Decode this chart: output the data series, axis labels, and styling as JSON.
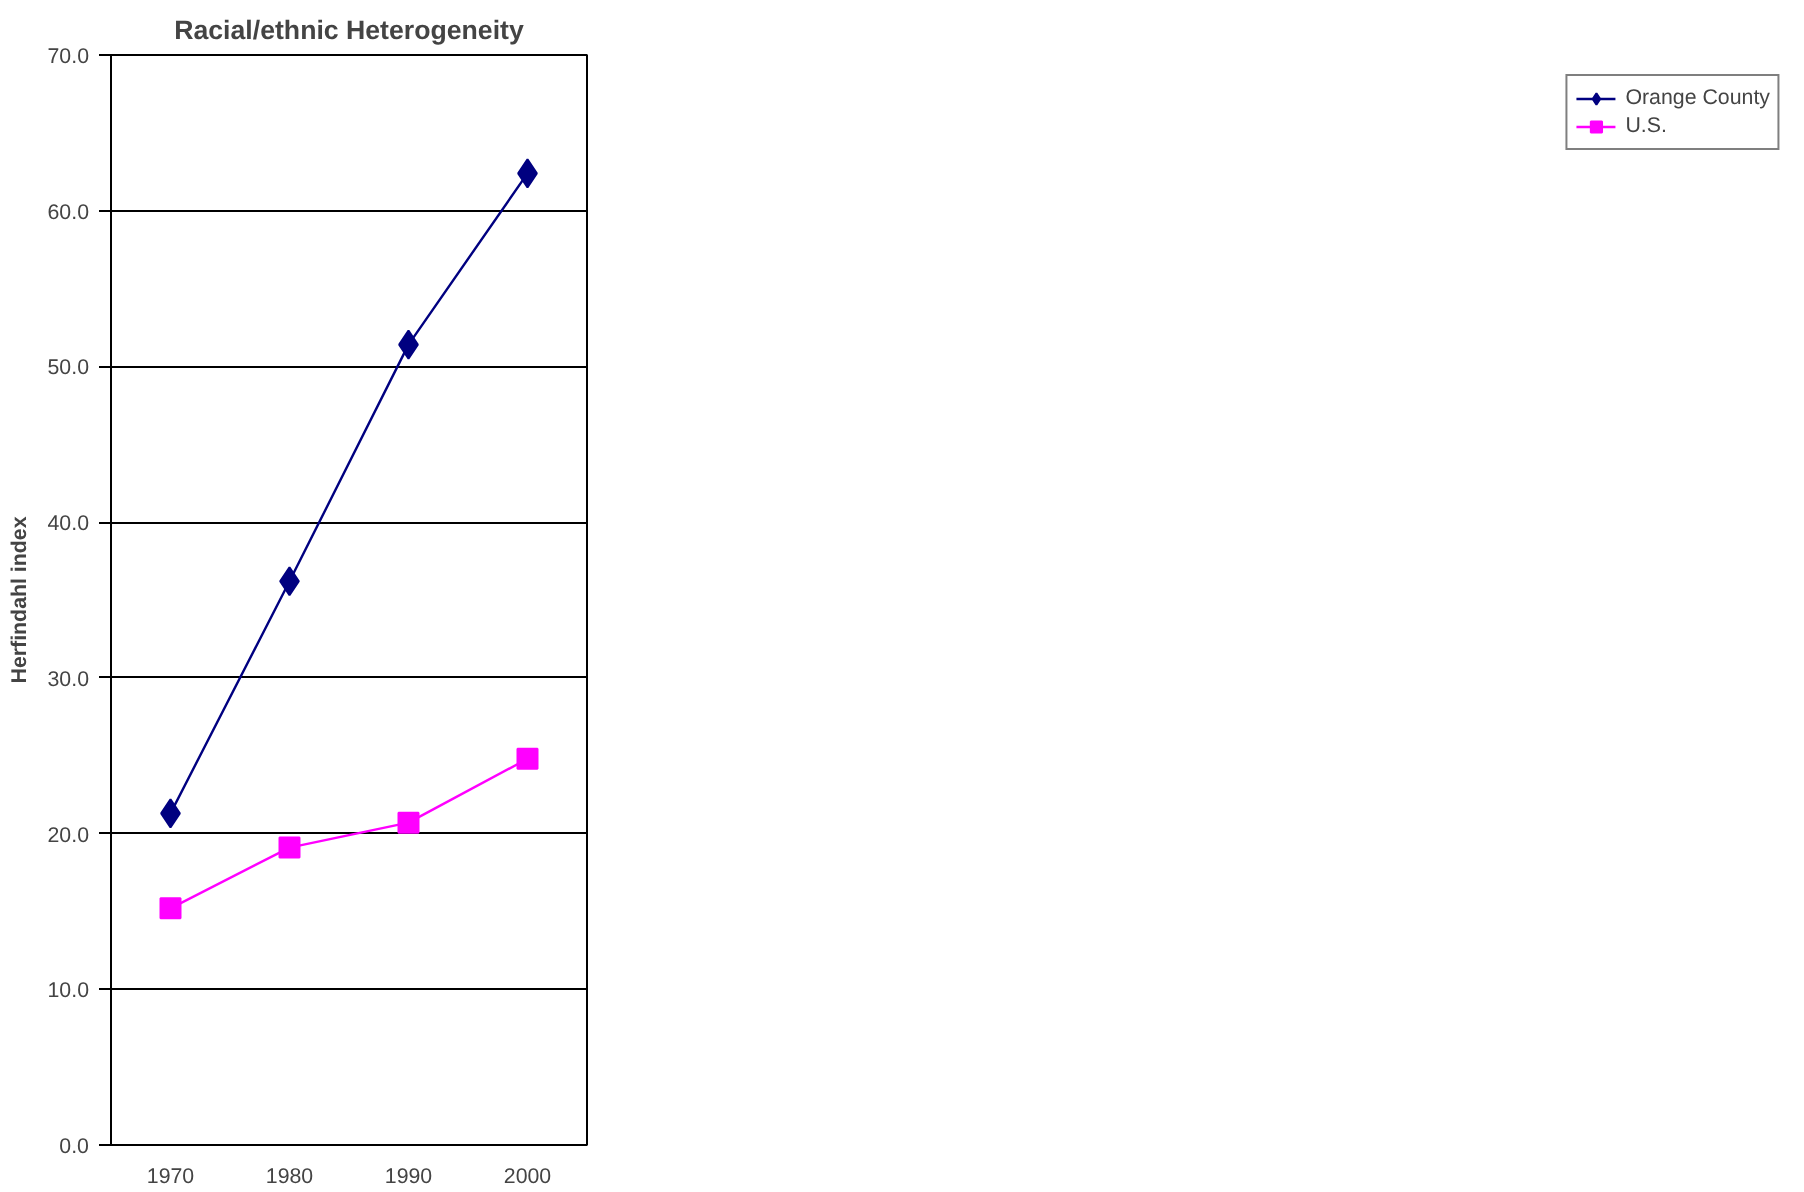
{
  "chart_data": {
    "type": "line",
    "title": "Racial/ethnic Heterogeneity",
    "ylabel": "Herfindahl index",
    "categories": [
      "1970",
      "1980",
      "1990",
      "2000"
    ],
    "series": [
      {
        "name": "Orange County",
        "color": "#000080",
        "marker": "diamond",
        "values": [
          21.3,
          36.2,
          51.4,
          62.4
        ]
      },
      {
        "name": "U.S.",
        "color": "#ff00ff",
        "marker": "square",
        "values": [
          15.2,
          19.1,
          20.7,
          24.8
        ]
      }
    ],
    "ylim": [
      0,
      70
    ],
    "yticks": [
      {
        "value": 0,
        "label": "0.0"
      },
      {
        "value": 10,
        "label": "10.0"
      },
      {
        "value": 20,
        "label": "20.0"
      },
      {
        "value": 30,
        "label": "30.0"
      },
      {
        "value": 40,
        "label": "40.0"
      },
      {
        "value": 50,
        "label": "50.0"
      },
      {
        "value": 60,
        "label": "60.0"
      },
      {
        "value": 70,
        "label": "70.0"
      }
    ],
    "grid": "y",
    "legend": "right"
  }
}
